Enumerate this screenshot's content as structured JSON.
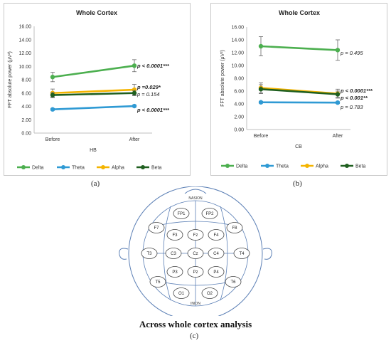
{
  "chart_data": [
    {
      "type": "line",
      "panel": "(a)",
      "title": "Whole Cortex",
      "xlabel": "HB",
      "ylabel": "FFT absolute power (μV²)",
      "ylim": [
        0,
        16
      ],
      "yticks": [
        "0.00",
        "2.00",
        "4.00",
        "6.00",
        "8.00",
        "10.00",
        "12.00",
        "14.00",
        "16.00"
      ],
      "categories": [
        "Before",
        "After"
      ],
      "legend_position": "bottom",
      "grid": false,
      "series": [
        {
          "name": "Delta",
          "color": "#4caf4f",
          "values": [
            8.4,
            10.1
          ],
          "errors": [
            0.7,
            0.9
          ],
          "annotation": "p < 0.0001***",
          "bold": true
        },
        {
          "name": "Theta",
          "color": "#2f9ad4",
          "values": [
            3.55,
            4.05
          ],
          "errors": [
            0.15,
            0.15
          ],
          "annotation": "p < 0.0001***",
          "bold": true
        },
        {
          "name": "Alpha",
          "color": "#f4b400",
          "values": [
            6.0,
            6.5
          ],
          "errors": [
            0.6,
            0.8
          ],
          "annotation": "p =0.029*",
          "bold": true
        },
        {
          "name": "Beta",
          "color": "#1f5f1f",
          "values": [
            5.7,
            6.0
          ],
          "errors": [
            0.4,
            0.4
          ],
          "annotation": "p = 0.154",
          "bold": false
        }
      ]
    },
    {
      "type": "line",
      "panel": "(b)",
      "title": "Whole Cortex",
      "xlabel": "CB",
      "ylabel": "FFT absolute power (μV²)",
      "ylim": [
        0,
        16
      ],
      "yticks": [
        "0.00",
        "2.00",
        "4.00",
        "6.00",
        "8.00",
        "10.00",
        "12.00",
        "14.00",
        "16.00"
      ],
      "categories": [
        "Before",
        "After"
      ],
      "legend_position": "bottom",
      "grid": false,
      "series": [
        {
          "name": "Delta",
          "color": "#4caf4f",
          "values": [
            13.0,
            12.4
          ],
          "errors": [
            1.5,
            1.6
          ],
          "annotation": "p = 0.495",
          "bold": false
        },
        {
          "name": "Theta",
          "color": "#2f9ad4",
          "values": [
            4.25,
            4.2
          ],
          "errors": [
            0.15,
            0.15
          ],
          "annotation": "p = 0.783",
          "bold": false
        },
        {
          "name": "Alpha",
          "color": "#f4b400",
          "values": [
            6.5,
            5.6
          ],
          "errors": [
            0.8,
            0.7
          ],
          "annotation": "p < 0.0001***",
          "bold": true
        },
        {
          "name": "Beta",
          "color": "#1f5f1f",
          "values": [
            6.3,
            5.5
          ],
          "errors": [
            0.7,
            0.5
          ],
          "annotation": "p < 0.001**",
          "bold": true
        }
      ]
    }
  ],
  "figure": {
    "label_a": "(a)",
    "label_b": "(b)",
    "label_c": "(c)"
  },
  "head_map": {
    "top_label": "NASION",
    "bottom_label": "INION",
    "caption": "Across whole cortex analysis",
    "electrodes": [
      "FP1",
      "FP2",
      "F7",
      "F3",
      "Fz",
      "F4",
      "F8",
      "T3",
      "C3",
      "Cz",
      "C4",
      "T4",
      "P3",
      "Pz",
      "P4",
      "T5",
      "T6",
      "O1",
      "O2"
    ]
  }
}
